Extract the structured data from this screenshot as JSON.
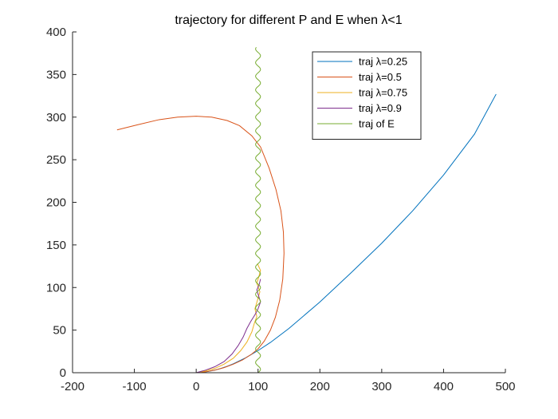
{
  "chart_data": {
    "type": "line",
    "title": "trajectory for different P and E when λ<1",
    "xlabel": "",
    "ylabel": "",
    "xlim": [
      -200,
      500
    ],
    "ylim": [
      0,
      400
    ],
    "xticks": [
      -200,
      -100,
      0,
      100,
      200,
      300,
      400,
      500
    ],
    "yticks": [
      0,
      50,
      100,
      150,
      200,
      250,
      300,
      350,
      400
    ],
    "grid": false,
    "legend_position": "top-right",
    "series": [
      {
        "name": "traj λ=0.25",
        "color": "#0072BD",
        "points": [
          [
            0,
            0
          ],
          [
            10,
            0.5
          ],
          [
            20,
            1.5
          ],
          [
            30,
            3
          ],
          [
            40,
            5
          ],
          [
            50,
            7.5
          ],
          [
            60,
            10.5
          ],
          [
            80,
            17.5
          ],
          [
            100,
            26
          ],
          [
            120,
            35.5
          ],
          [
            150,
            52
          ],
          [
            200,
            83
          ],
          [
            250,
            117
          ],
          [
            300,
            152
          ],
          [
            350,
            190
          ],
          [
            400,
            232
          ],
          [
            450,
            280
          ],
          [
            485,
            327
          ]
        ]
      },
      {
        "name": "traj λ=0.5",
        "color": "#D95319",
        "points": [
          [
            0,
            0
          ],
          [
            15,
            1
          ],
          [
            30,
            3
          ],
          [
            45,
            6
          ],
          [
            60,
            10
          ],
          [
            75,
            15
          ],
          [
            90,
            22
          ],
          [
            100,
            28
          ],
          [
            110,
            37
          ],
          [
            120,
            50
          ],
          [
            128,
            65
          ],
          [
            135,
            85
          ],
          [
            140,
            110
          ],
          [
            142,
            140
          ],
          [
            141,
            165
          ],
          [
            137,
            190
          ],
          [
            129,
            215
          ],
          [
            118,
            240
          ],
          [
            104,
            265
          ],
          [
            90,
            278
          ],
          [
            70,
            290
          ],
          [
            50,
            296
          ],
          [
            25,
            300
          ],
          [
            0,
            301
          ],
          [
            -30,
            300
          ],
          [
            -60,
            297
          ],
          [
            -95,
            291
          ],
          [
            -128,
            285
          ]
        ]
      },
      {
        "name": "traj λ=0.75",
        "color": "#EDB120",
        "points": [
          [
            0,
            0
          ],
          [
            15,
            2
          ],
          [
            30,
            5
          ],
          [
            45,
            10
          ],
          [
            60,
            17
          ],
          [
            72,
            26
          ],
          [
            82,
            36
          ],
          [
            90,
            48
          ],
          [
            94,
            58
          ],
          [
            98,
            66
          ],
          [
            95,
            75
          ],
          [
            99,
            85
          ],
          [
            103,
            95
          ],
          [
            98,
            105
          ],
          [
            101,
            112
          ],
          [
            104,
            120
          ],
          [
            99,
            128
          ]
        ]
      },
      {
        "name": "traj λ=0.9",
        "color": "#7E2F8E",
        "points": [
          [
            0,
            0
          ],
          [
            15,
            3
          ],
          [
            30,
            7
          ],
          [
            45,
            13
          ],
          [
            58,
            22
          ],
          [
            68,
            32
          ],
          [
            76,
            42
          ],
          [
            82,
            52
          ],
          [
            88,
            60
          ],
          [
            95,
            68
          ],
          [
            100,
            75
          ],
          [
            104,
            83
          ],
          [
            101,
            90
          ],
          [
            98,
            97
          ],
          [
            102,
            104
          ],
          [
            104,
            110
          ]
        ]
      },
      {
        "name": "traj of E",
        "color": "#77AC30",
        "wave": {
          "center_x": 100,
          "amplitude": 4,
          "period": 16,
          "y_start": 0,
          "y_end": 382
        }
      }
    ]
  }
}
